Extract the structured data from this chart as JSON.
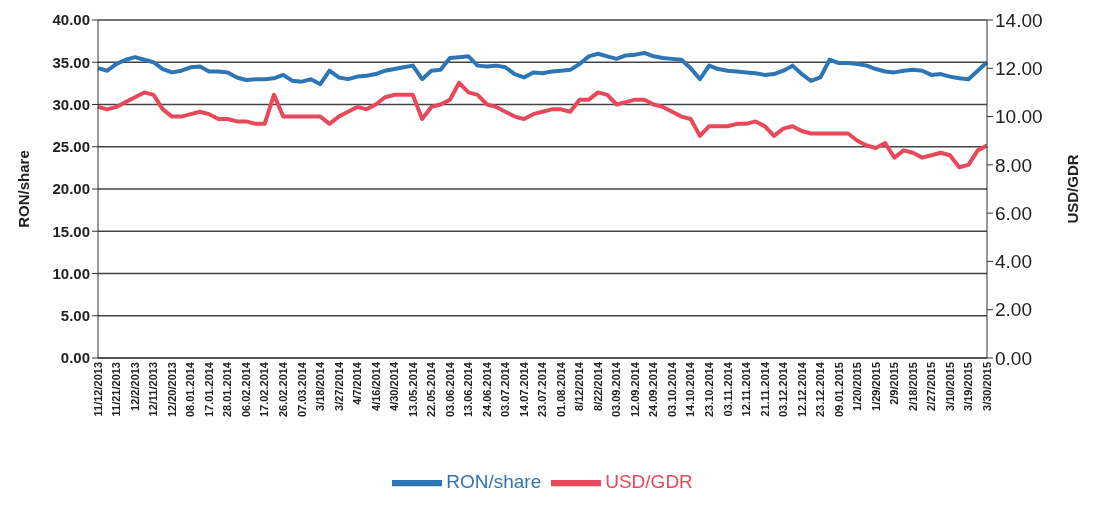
{
  "chart_data": {
    "type": "line",
    "xlabel": null,
    "ylabel": "RON/share",
    "y2label": "USD/GDR",
    "categories": [
      "11/12/2013",
      null,
      "11/21/2013",
      null,
      "12/2/2013",
      null,
      "12/11/2013",
      null,
      "12/20/2013",
      null,
      "08.01.2014",
      null,
      "17.01.2014",
      null,
      "28.01.2014",
      null,
      "06.02.2014",
      null,
      "17.02.2014",
      null,
      "26.02.2014",
      null,
      "07.03.2014",
      null,
      "3/18/2014",
      null,
      "3/27/2014",
      null,
      "4/7/2014",
      null,
      "4/16/2014",
      null,
      "4/30/2014",
      null,
      "13.05.2014",
      null,
      "22.05.2014",
      null,
      "03.06.2014",
      null,
      "13.06.2014",
      null,
      "24.06.2014",
      null,
      "03.07.2014",
      null,
      "14.07.2014",
      null,
      "23.07.2014",
      null,
      "01.08.2014",
      null,
      "8/12/2014",
      null,
      "8/22/2014",
      null,
      "03.09.2014",
      null,
      "12.09.2014",
      null,
      "24.09.2014",
      null,
      "03.10.2014",
      null,
      "14.10.2014",
      null,
      "23.10.2014",
      null,
      "03.11.2014",
      null,
      "12.11.2014",
      null,
      "21.11.2014",
      null,
      "03.12.2014",
      null,
      "12.12.2014",
      null,
      "23.12.2014",
      null,
      "09.01.2015",
      null,
      "1/20/2015",
      null,
      "1/29/2015",
      null,
      "2/9/2015",
      null,
      "2/18/2015",
      null,
      "2/27/2015",
      null,
      "3/10/2015",
      null,
      "3/19/2015",
      null,
      "3/30/2015"
    ],
    "series": [
      {
        "name": "RON/share",
        "color": "#2e75b6",
        "values": [
          34.3,
          34.0,
          34.8,
          35.3,
          35.6,
          35.3,
          35.0,
          34.2,
          33.8,
          34.0,
          34.4,
          34.5,
          33.9,
          33.9,
          33.8,
          33.2,
          32.9,
          33.0,
          33.0,
          33.1,
          33.5,
          32.8,
          32.7,
          33.0,
          32.4,
          34.0,
          33.2,
          33.0,
          33.3,
          33.4,
          33.6,
          34.0,
          34.2,
          34.4,
          34.6,
          33.0,
          34.0,
          34.1,
          35.5,
          35.6,
          35.7,
          34.6,
          34.5,
          34.6,
          34.4,
          33.6,
          33.2,
          33.8,
          33.7,
          33.9,
          34.0,
          34.1,
          34.8,
          35.7,
          36.0,
          35.7,
          35.4,
          35.8,
          35.9,
          36.1,
          35.7,
          35.5,
          35.4,
          35.3,
          34.3,
          33.0,
          34.6,
          34.2,
          34.0,
          33.9,
          33.8,
          33.7,
          33.5,
          33.6,
          34.0,
          34.6,
          33.6,
          32.8,
          33.2,
          35.3,
          34.9,
          34.9,
          34.8,
          34.6,
          34.2,
          33.9,
          33.8,
          34.0,
          34.1,
          34.0,
          33.5,
          33.6,
          33.3,
          33.1,
          33.0,
          34.0,
          35.0
        ]
      },
      {
        "name": "USD/GDR",
        "color": "#e8485a",
        "axis": "y2",
        "values": [
          10.4,
          10.3,
          10.4,
          10.6,
          10.8,
          11.0,
          10.9,
          10.3,
          10.0,
          10.0,
          10.1,
          10.2,
          10.1,
          9.9,
          9.9,
          9.8,
          9.8,
          9.7,
          9.7,
          10.9,
          10.0,
          10.0,
          10.0,
          10.0,
          10.0,
          9.7,
          10.0,
          10.2,
          10.4,
          10.3,
          10.5,
          10.8,
          10.9,
          10.9,
          10.9,
          9.9,
          10.4,
          10.5,
          10.7,
          11.4,
          11.0,
          10.9,
          10.5,
          10.4,
          10.2,
          10.0,
          9.9,
          10.1,
          10.2,
          10.3,
          10.3,
          10.2,
          10.7,
          10.7,
          11.0,
          10.9,
          10.5,
          10.6,
          10.7,
          10.7,
          10.5,
          10.4,
          10.2,
          10.0,
          9.9,
          9.2,
          9.6,
          9.6,
          9.6,
          9.7,
          9.7,
          9.8,
          9.6,
          9.2,
          9.5,
          9.6,
          9.4,
          9.3,
          9.3,
          9.3,
          9.3,
          9.3,
          9.0,
          8.8,
          8.7,
          8.9,
          8.3,
          8.6,
          8.5,
          8.3,
          8.4,
          8.5,
          8.4,
          7.9,
          8.0,
          8.6,
          8.8
        ]
      }
    ],
    "ylim": [
      0,
      40
    ],
    "yticks": [
      {
        "value": 0,
        "label": "0.00"
      },
      {
        "value": 5,
        "label": "5.00"
      },
      {
        "value": 10,
        "label": "10.00"
      },
      {
        "value": 15,
        "label": "15.00"
      },
      {
        "value": 20,
        "label": "20.00"
      },
      {
        "value": 25,
        "label": "25.00"
      },
      {
        "value": 30,
        "label": "30.00"
      },
      {
        "value": 35,
        "label": "35.00"
      },
      {
        "value": 40,
        "label": "40.00"
      }
    ],
    "y2lim": [
      0,
      14
    ],
    "y2ticks": [
      {
        "value": 0,
        "label": "0.00"
      },
      {
        "value": 2,
        "label": "2.00"
      },
      {
        "value": 4,
        "label": "4.00"
      },
      {
        "value": 6,
        "label": "6.00"
      },
      {
        "value": 8,
        "label": "8.00"
      },
      {
        "value": 10,
        "label": "10.00"
      },
      {
        "value": 12,
        "label": "12.00"
      },
      {
        "value": 14,
        "label": "14.00"
      }
    ],
    "grid": "y",
    "legend": "bottom",
    "marker": "none",
    "line_style": "solid"
  }
}
